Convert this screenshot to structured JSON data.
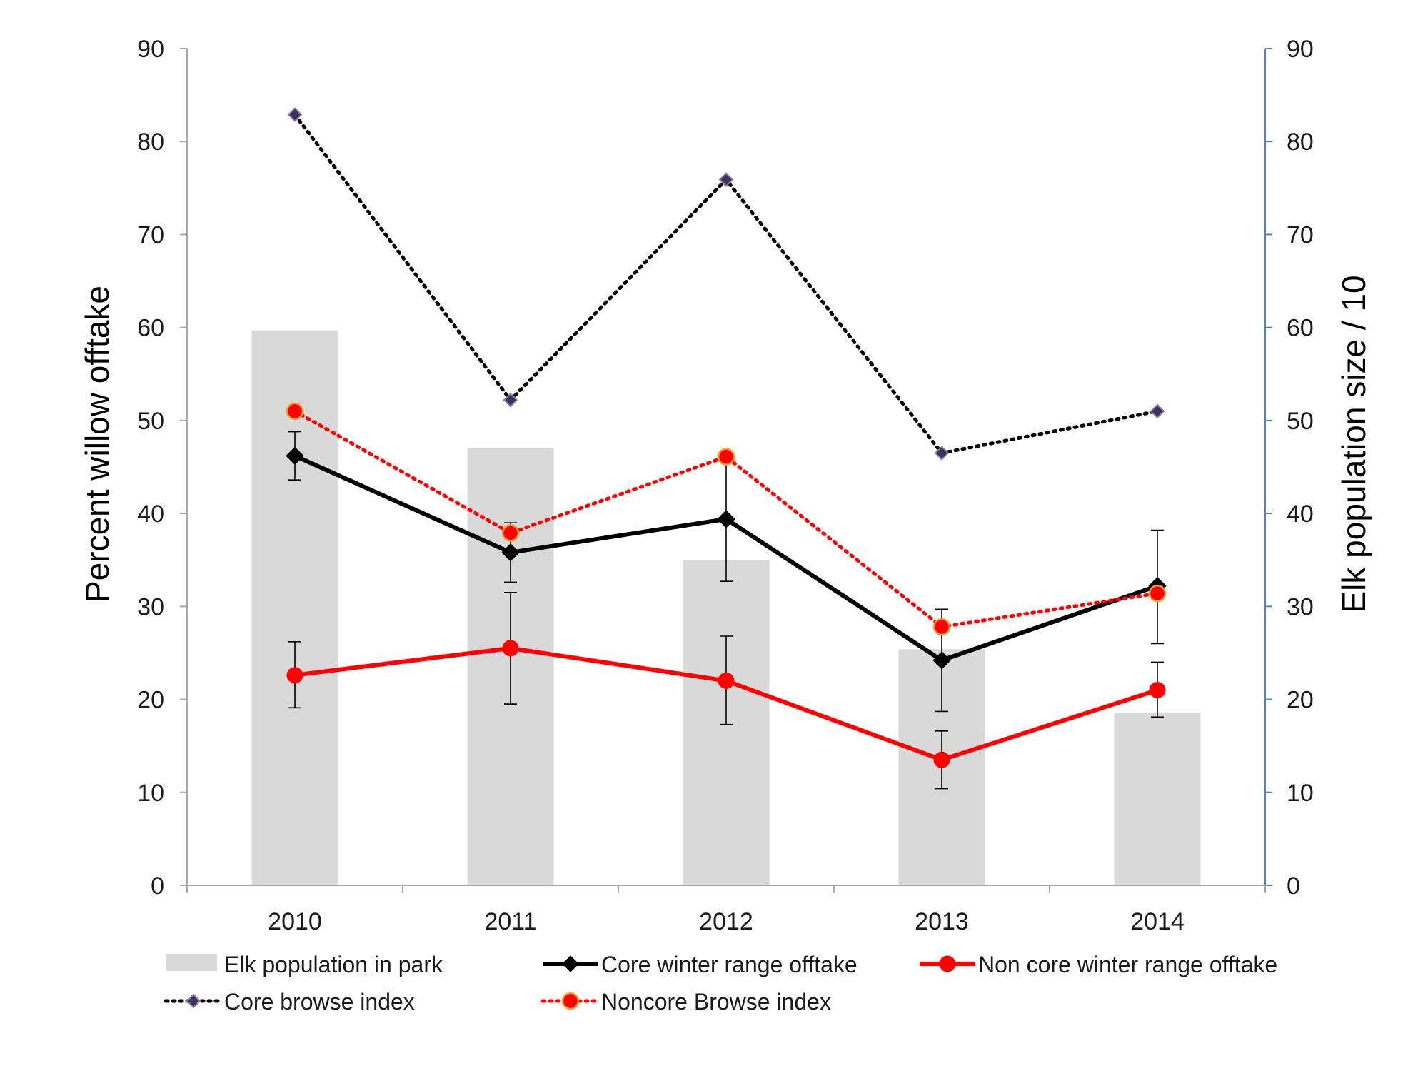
{
  "chart_data": {
    "type": "bar",
    "categories": [
      "2010",
      "2011",
      "2012",
      "2013",
      "2014"
    ],
    "ylabel_left": "Percent willow offtake",
    "ylabel_right": "Elk population size / 10",
    "ylim": [
      0,
      90
    ],
    "yticks": [
      "0",
      "10",
      "20",
      "30",
      "40",
      "50",
      "60",
      "70",
      "80",
      "90"
    ],
    "grid": false,
    "legend_position": "bottom",
    "series": [
      {
        "name": "Elk population in park",
        "kind": "bar",
        "axis": "right",
        "color": "#d9d9d9",
        "values": [
          59.7,
          47.0,
          35.0,
          25.4,
          18.6
        ]
      },
      {
        "name": "Core winter range offtake",
        "kind": "line",
        "axis": "left",
        "color": "#000000",
        "line_style": "solid",
        "marker": "diamond",
        "values": [
          46.2,
          35.8,
          39.4,
          24.2,
          32.2
        ],
        "error_low": [
          43.6,
          32.6,
          32.7,
          18.7,
          26.0
        ],
        "error_high": [
          48.8,
          39.0,
          46.1,
          29.7,
          38.2
        ]
      },
      {
        "name": "Non core winter range offtake",
        "kind": "line",
        "axis": "left",
        "color": "#ff0000",
        "line_style": "solid",
        "marker": "circle",
        "values": [
          22.6,
          25.5,
          22.0,
          13.5,
          21.0
        ],
        "error_low": [
          19.1,
          19.5,
          17.3,
          10.4,
          18.1
        ],
        "error_high": [
          26.2,
          31.5,
          26.8,
          16.6,
          24.0
        ]
      },
      {
        "name": "Core browse index",
        "kind": "line",
        "axis": "left",
        "color": "#000000",
        "line_style": "dotted",
        "marker": "diamond",
        "marker_color": "#3d3356",
        "values": [
          82.9,
          52.2,
          75.9,
          46.5,
          51.0
        ]
      },
      {
        "name": "Noncore Browse index",
        "kind": "line",
        "axis": "left",
        "color": "#ff0000",
        "line_style": "dotted",
        "marker": "circle",
        "marker_color": "#ff0000",
        "marker_edge": "#f0a030",
        "values": [
          51.0,
          37.9,
          46.1,
          27.8,
          31.4
        ]
      }
    ]
  }
}
